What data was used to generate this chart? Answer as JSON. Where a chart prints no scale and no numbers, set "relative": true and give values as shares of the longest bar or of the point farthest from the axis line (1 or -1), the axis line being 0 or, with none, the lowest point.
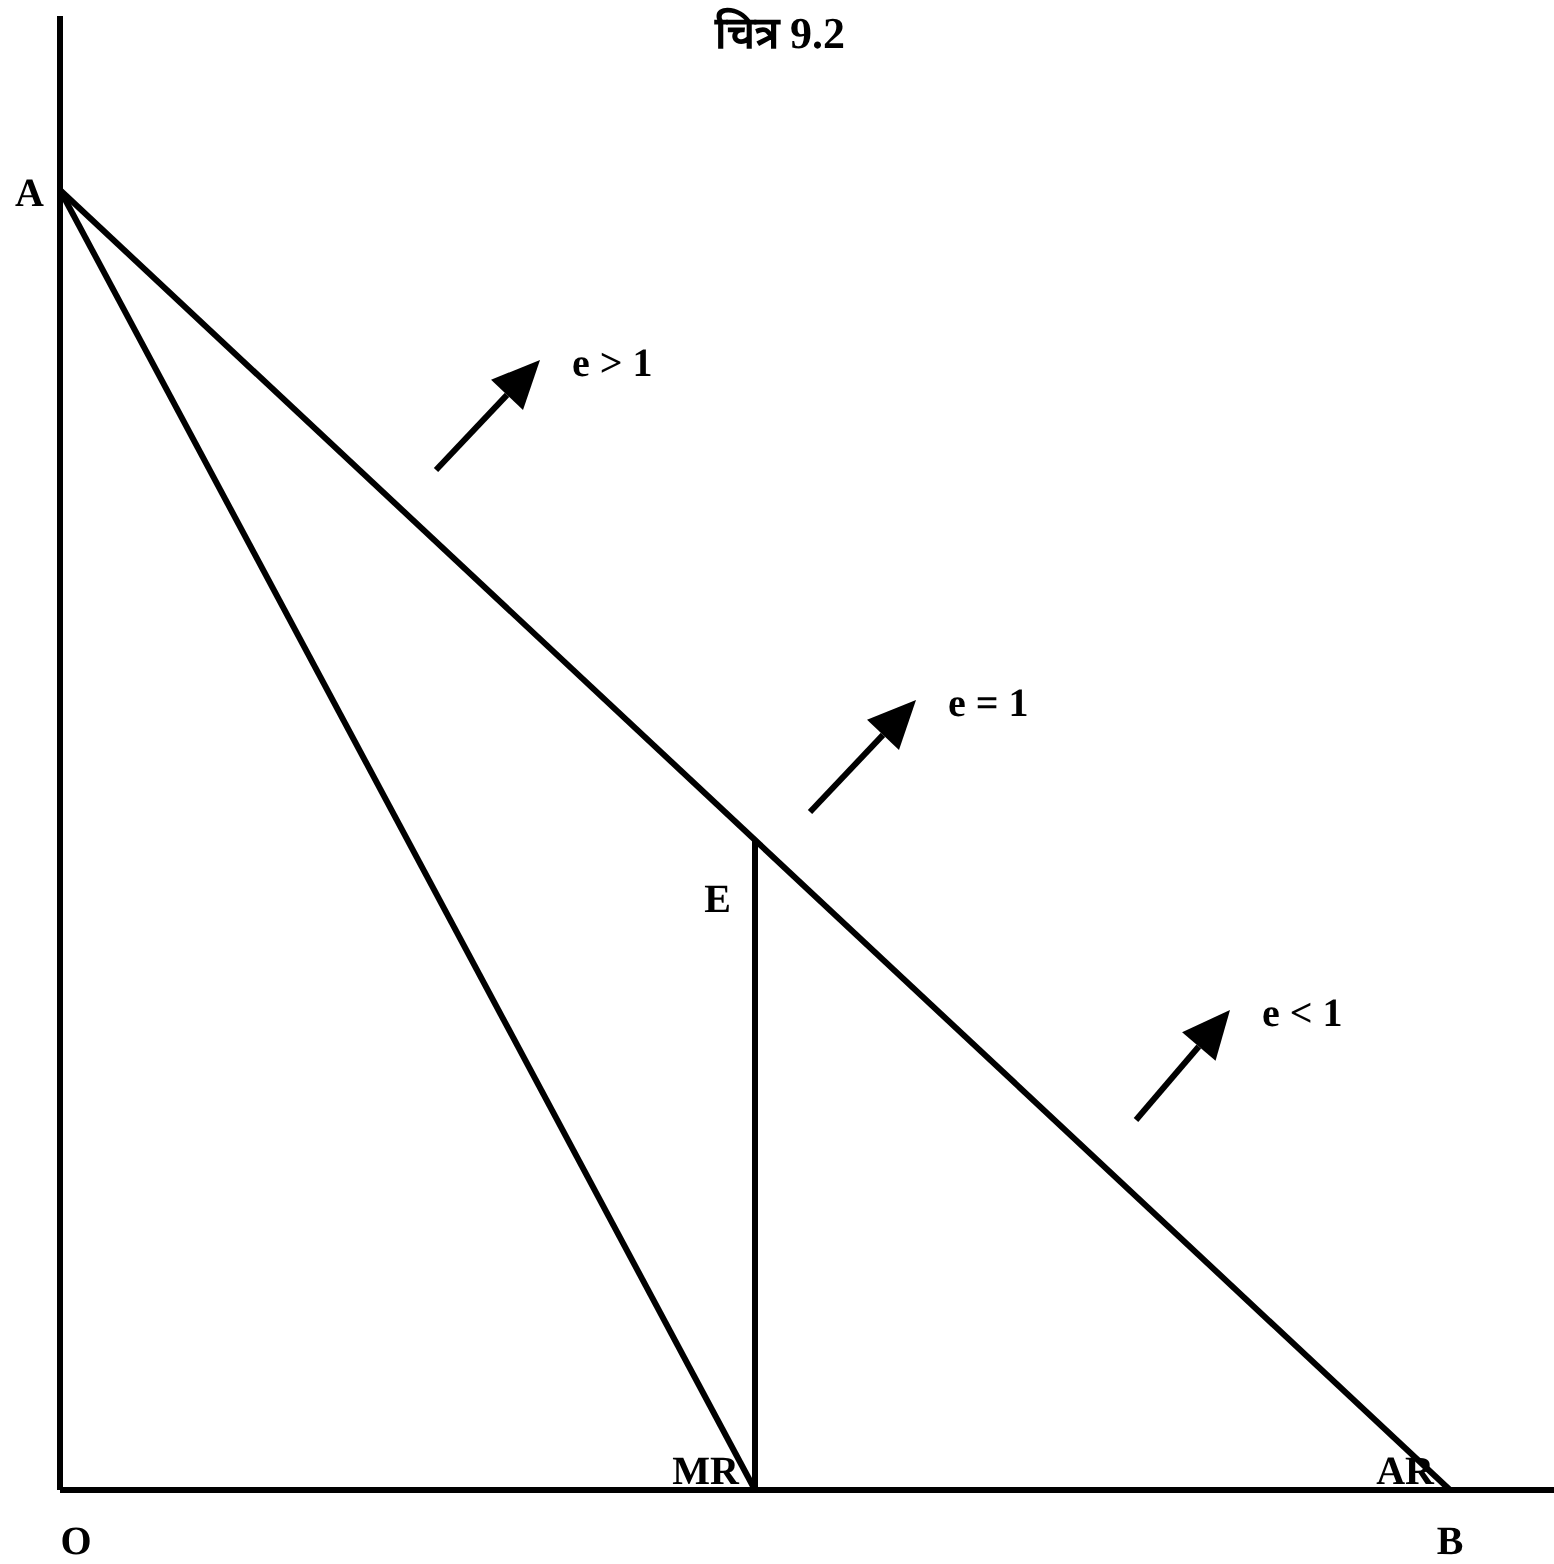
{
  "chart_data": {
    "type": "line",
    "title": "चित्र 9.2",
    "relative": true,
    "categories": [
      null,
      null,
      null
    ],
    "tick_labels": false,
    "legend": false,
    "grid": false,
    "marker": "none",
    "line_style": "solid",
    "series": [
      {
        "name": "AR",
        "color": "#000000",
        "values": [
          1,
          0.5,
          0
        ]
      },
      {
        "name": "MR",
        "color": "#000000",
        "values": [
          1,
          0,
          null
        ]
      }
    ],
    "annotations": [
      "A",
      "O",
      "B",
      "E",
      "e > 1",
      "e = 1",
      "e < 1"
    ]
  }
}
